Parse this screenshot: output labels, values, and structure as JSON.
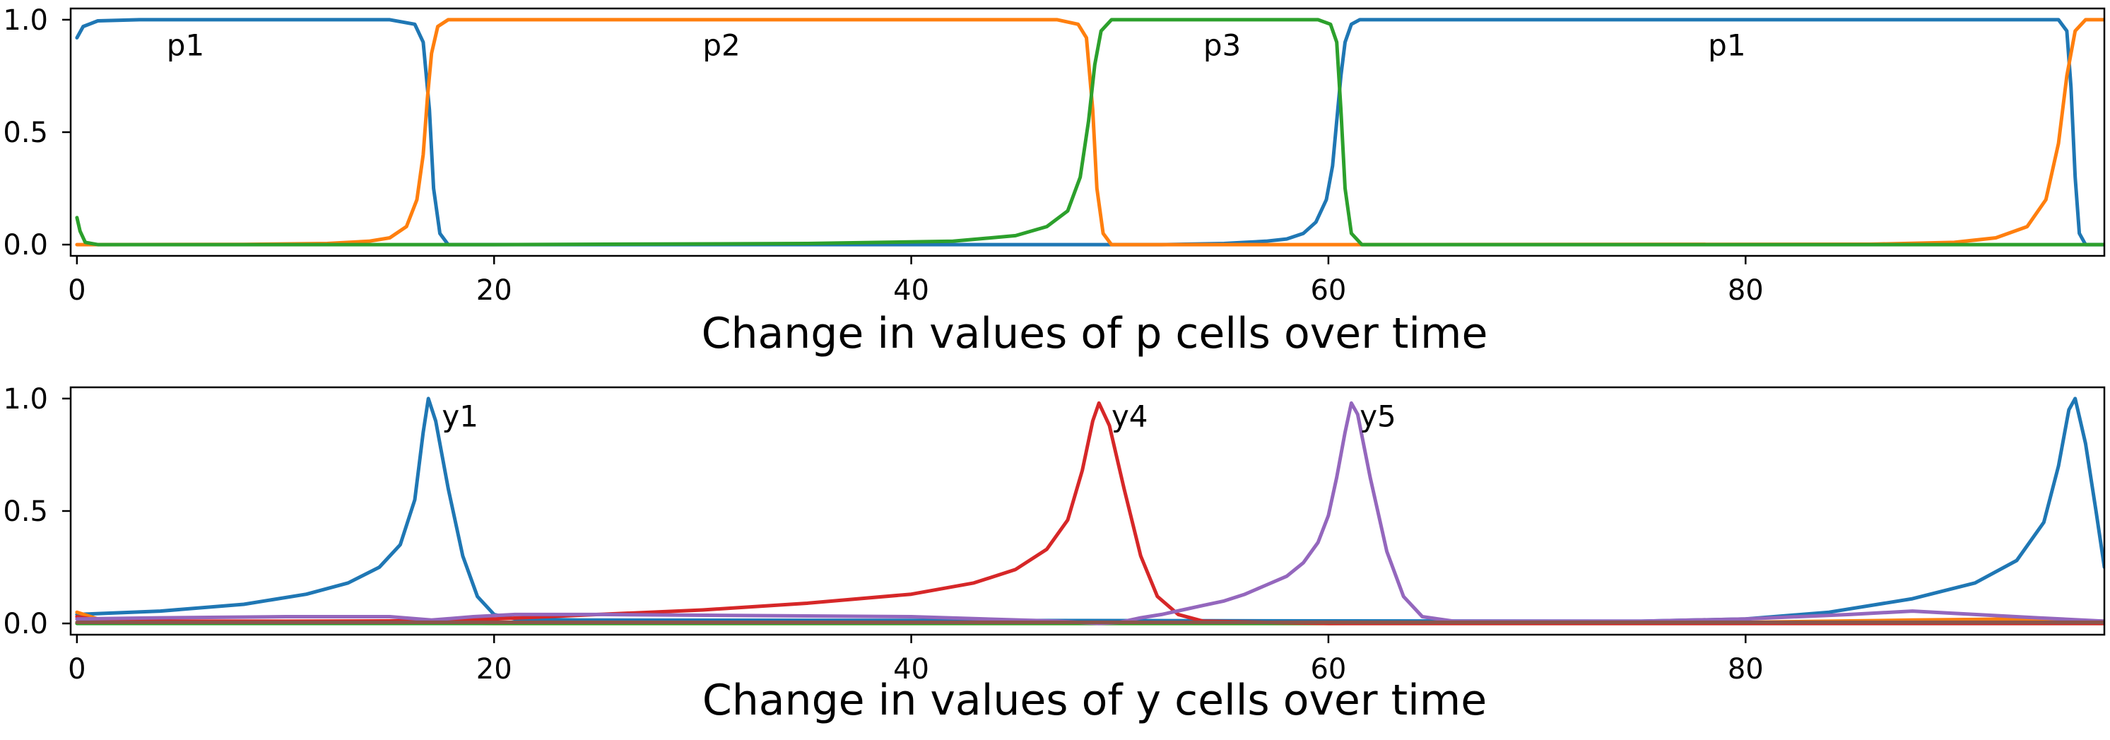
{
  "chart_data": [
    {
      "type": "line",
      "xlabel": "Change in values of p cells over time",
      "xlim": [
        -0.3,
        97.2
      ],
      "ylim": [
        -0.05,
        1.05
      ],
      "xticks": [
        0,
        20,
        40,
        60,
        80
      ],
      "xtick_labels": [
        "0",
        "20",
        "40",
        "60",
        "80"
      ],
      "yticks": [
        0.0,
        0.5,
        1.0
      ],
      "ytick_labels": [
        "0.0",
        "0.5",
        "1.0"
      ],
      "grid": false,
      "series": [
        {
          "color": "#1f77b4",
          "points": [
            [
              0,
              0.92
            ],
            [
              0.3,
              0.97
            ],
            [
              1,
              0.995
            ],
            [
              3,
              1.0
            ],
            [
              15,
              1.0
            ],
            [
              16.2,
              0.98
            ],
            [
              16.6,
              0.9
            ],
            [
              16.9,
              0.6
            ],
            [
              17.1,
              0.25
            ],
            [
              17.4,
              0.05
            ],
            [
              17.8,
              0.0
            ],
            [
              48,
              0.0
            ],
            [
              52,
              0.0
            ],
            [
              55,
              0.005
            ],
            [
              56,
              0.01
            ],
            [
              57,
              0.015
            ],
            [
              58,
              0.025
            ],
            [
              58.8,
              0.05
            ],
            [
              59.4,
              0.1
            ],
            [
              59.9,
              0.2
            ],
            [
              60.2,
              0.35
            ],
            [
              60.4,
              0.55
            ],
            [
              60.6,
              0.75
            ],
            [
              60.8,
              0.9
            ],
            [
              61.1,
              0.98
            ],
            [
              61.5,
              1.0
            ],
            [
              95,
              1.0
            ],
            [
              95.4,
              0.95
            ],
            [
              95.6,
              0.7
            ],
            [
              95.8,
              0.3
            ],
            [
              96,
              0.05
            ],
            [
              96.3,
              0.0
            ],
            [
              97.2,
              0.0
            ]
          ]
        },
        {
          "color": "#ff7f0e",
          "points": [
            [
              0,
              0.0
            ],
            [
              8,
              0.001
            ],
            [
              12,
              0.005
            ],
            [
              14,
              0.015
            ],
            [
              15,
              0.03
            ],
            [
              15.8,
              0.08
            ],
            [
              16.3,
              0.2
            ],
            [
              16.6,
              0.4
            ],
            [
              16.8,
              0.65
            ],
            [
              17,
              0.85
            ],
            [
              17.3,
              0.97
            ],
            [
              17.8,
              1.0
            ],
            [
              47,
              1.0
            ],
            [
              48,
              0.98
            ],
            [
              48.4,
              0.92
            ],
            [
              48.7,
              0.6
            ],
            [
              48.9,
              0.25
            ],
            [
              49.2,
              0.05
            ],
            [
              49.6,
              0.0
            ],
            [
              60.6,
              0.0
            ],
            [
              86,
              0.002
            ],
            [
              90,
              0.01
            ],
            [
              92,
              0.03
            ],
            [
              93.5,
              0.08
            ],
            [
              94.4,
              0.2
            ],
            [
              95,
              0.45
            ],
            [
              95.4,
              0.75
            ],
            [
              95.8,
              0.95
            ],
            [
              96.3,
              1.0
            ],
            [
              97.2,
              1.0
            ]
          ]
        },
        {
          "color": "#2ca02c",
          "points": [
            [
              0,
              0.12
            ],
            [
              0.15,
              0.06
            ],
            [
              0.4,
              0.01
            ],
            [
              1,
              0.0
            ],
            [
              20,
              0.0
            ],
            [
              35,
              0.005
            ],
            [
              42,
              0.015
            ],
            [
              45,
              0.04
            ],
            [
              46.5,
              0.08
            ],
            [
              47.5,
              0.15
            ],
            [
              48.1,
              0.3
            ],
            [
              48.5,
              0.55
            ],
            [
              48.8,
              0.8
            ],
            [
              49.1,
              0.95
            ],
            [
              49.6,
              1.0
            ],
            [
              59.5,
              1.0
            ],
            [
              60.1,
              0.98
            ],
            [
              60.4,
              0.9
            ],
            [
              60.6,
              0.6
            ],
            [
              60.8,
              0.25
            ],
            [
              61.1,
              0.05
            ],
            [
              61.6,
              0.0
            ],
            [
              97.2,
              0.0
            ]
          ]
        }
      ],
      "annotations": [
        {
          "text": "p1",
          "x": 4.3,
          "y": 0.885
        },
        {
          "text": "p2",
          "x": 30,
          "y": 0.885
        },
        {
          "text": "p3",
          "x": 54,
          "y": 0.885
        },
        {
          "text": "p1",
          "x": 78.2,
          "y": 0.885
        }
      ]
    },
    {
      "type": "line",
      "xlabel": "Change in values of y cells over time",
      "xlim": [
        -0.3,
        97.2
      ],
      "ylim": [
        -0.05,
        1.05
      ],
      "xticks": [
        0,
        20,
        40,
        60,
        80
      ],
      "xtick_labels": [
        "0",
        "20",
        "40",
        "60",
        "80"
      ],
      "yticks": [
        0.0,
        0.5,
        1.0
      ],
      "ytick_labels": [
        "0.0",
        "0.5",
        "1.0"
      ],
      "grid": false,
      "series": [
        {
          "color": "#1f77b4",
          "points": [
            [
              0,
              0.04
            ],
            [
              4,
              0.055
            ],
            [
              8,
              0.085
            ],
            [
              11,
              0.13
            ],
            [
              13,
              0.18
            ],
            [
              14.5,
              0.25
            ],
            [
              15.5,
              0.35
            ],
            [
              16.2,
              0.55
            ],
            [
              16.6,
              0.85
            ],
            [
              16.85,
              1.0
            ],
            [
              17.2,
              0.9
            ],
            [
              17.8,
              0.6
            ],
            [
              18.5,
              0.3
            ],
            [
              19.2,
              0.12
            ],
            [
              20,
              0.04
            ],
            [
              21,
              0.02
            ],
            [
              24,
              0.015
            ],
            [
              75,
              0.01
            ],
            [
              80,
              0.02
            ],
            [
              84,
              0.05
            ],
            [
              88,
              0.11
            ],
            [
              91,
              0.18
            ],
            [
              93,
              0.28
            ],
            [
              94.3,
              0.45
            ],
            [
              95,
              0.7
            ],
            [
              95.5,
              0.95
            ],
            [
              95.8,
              1.0
            ],
            [
              96.3,
              0.8
            ],
            [
              96.8,
              0.5
            ],
            [
              97.2,
              0.25
            ]
          ]
        },
        {
          "color": "#ff7f0e",
          "points": [
            [
              0,
              0.05
            ],
            [
              1,
              0.02
            ],
            [
              2,
              0.01
            ],
            [
              20,
              0.0
            ],
            [
              60,
              0.0
            ],
            [
              80,
              0.005
            ],
            [
              88,
              0.015
            ],
            [
              93,
              0.02
            ],
            [
              97.2,
              0.01
            ]
          ]
        },
        {
          "color": "#2ca02c",
          "points": [
            [
              0,
              0.0
            ],
            [
              97.2,
              0.0
            ]
          ]
        },
        {
          "color": "#d62728",
          "points": [
            [
              0,
              0.03
            ],
            [
              1,
              0.015
            ],
            [
              3,
              0.01
            ],
            [
              10,
              0.01
            ],
            [
              17,
              0.012
            ],
            [
              20,
              0.02
            ],
            [
              25,
              0.04
            ],
            [
              30,
              0.06
            ],
            [
              35,
              0.09
            ],
            [
              40,
              0.13
            ],
            [
              43,
              0.18
            ],
            [
              45,
              0.24
            ],
            [
              46.5,
              0.33
            ],
            [
              47.5,
              0.46
            ],
            [
              48.2,
              0.68
            ],
            [
              48.7,
              0.9
            ],
            [
              49,
              0.98
            ],
            [
              49.5,
              0.88
            ],
            [
              50.2,
              0.6
            ],
            [
              51,
              0.3
            ],
            [
              51.8,
              0.12
            ],
            [
              52.8,
              0.04
            ],
            [
              54,
              0.01
            ],
            [
              60,
              0.0
            ],
            [
              97.2,
              0.0
            ]
          ]
        },
        {
          "color": "#9467bd",
          "points": [
            [
              0,
              0.02
            ],
            [
              4,
              0.025
            ],
            [
              10,
              0.03
            ],
            [
              15,
              0.03
            ],
            [
              17,
              0.015
            ],
            [
              19,
              0.03
            ],
            [
              21,
              0.04
            ],
            [
              25,
              0.04
            ],
            [
              40,
              0.03
            ],
            [
              47,
              0.01
            ],
            [
              49,
              0.0
            ],
            [
              50,
              0.005
            ],
            [
              51,
              0.025
            ],
            [
              52,
              0.04
            ],
            [
              53,
              0.06
            ],
            [
              54,
              0.08
            ],
            [
              55,
              0.1
            ],
            [
              56,
              0.13
            ],
            [
              57,
              0.17
            ],
            [
              58,
              0.21
            ],
            [
              58.8,
              0.27
            ],
            [
              59.5,
              0.36
            ],
            [
              60,
              0.48
            ],
            [
              60.4,
              0.65
            ],
            [
              60.8,
              0.85
            ],
            [
              61.1,
              0.98
            ],
            [
              61.4,
              0.93
            ],
            [
              62,
              0.65
            ],
            [
              62.8,
              0.32
            ],
            [
              63.6,
              0.12
            ],
            [
              64.5,
              0.03
            ],
            [
              66,
              0.01
            ],
            [
              75,
              0.01
            ],
            [
              80,
              0.02
            ],
            [
              85,
              0.04
            ],
            [
              88,
              0.055
            ],
            [
              91,
              0.04
            ],
            [
              94,
              0.025
            ],
            [
              97.2,
              0.01
            ]
          ]
        },
        {
          "color": "#8c564b",
          "points": [
            [
              0,
              0.005
            ],
            [
              97.2,
              0.005
            ]
          ]
        }
      ],
      "annotations": [
        {
          "text": "y1",
          "x": 17.5,
          "y": 0.92
        },
        {
          "text": "y4",
          "x": 49.6,
          "y": 0.92
        },
        {
          "text": "y5",
          "x": 61.5,
          "y": 0.92
        }
      ]
    }
  ]
}
